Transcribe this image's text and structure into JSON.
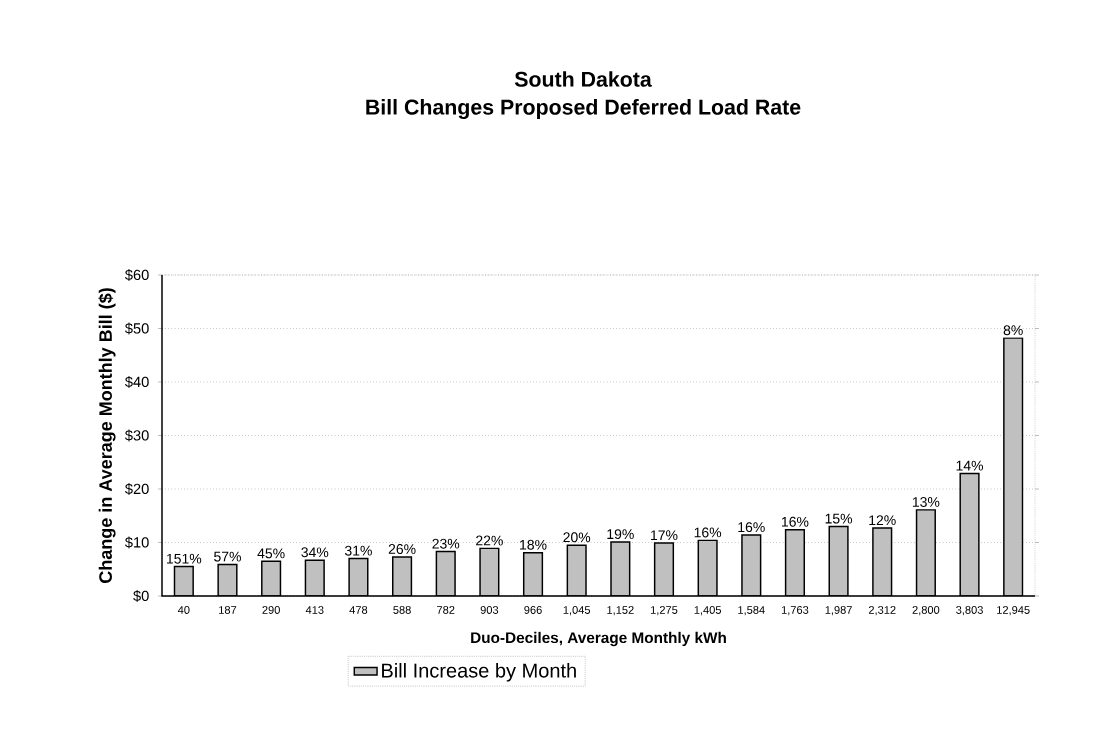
{
  "chart_data": {
    "type": "bar",
    "title": "South Dakota",
    "subtitle": "Bill Changes Proposed Deferred Load Rate",
    "xlabel": "Duo-Deciles, Average Monthly kWh",
    "ylabel": "Change in Average Monthly Bill ($)",
    "categories": [
      "40",
      "187",
      "290",
      "413",
      "478",
      "588",
      "782",
      "903",
      "966",
      "1,045",
      "1,152",
      "1,275",
      "1,405",
      "1,584",
      "1,763",
      "1,987",
      "2,312",
      "2,800",
      "3,803",
      "12,945"
    ],
    "series": [
      {
        "name": "Bill Increase by Month",
        "color": "#c0c0c0",
        "values": [
          5.5,
          5.9,
          6.5,
          6.7,
          7.0,
          7.3,
          8.3,
          8.9,
          8.1,
          9.5,
          10.1,
          9.9,
          10.4,
          11.4,
          12.4,
          13.0,
          12.7,
          16.1,
          22.9,
          48.2
        ]
      }
    ],
    "annotations": [
      {
        "text": "151%",
        "x": "40",
        "y": 5.5
      },
      {
        "text": "57%",
        "x": "187",
        "y": 5.9
      },
      {
        "text": "45%",
        "x": "290",
        "y": 6.5
      },
      {
        "text": "34%",
        "x": "413",
        "y": 6.7
      },
      {
        "text": "31%",
        "x": "478",
        "y": 7.0
      },
      {
        "text": "26%",
        "x": "588",
        "y": 7.3
      },
      {
        "text": "23%",
        "x": "782",
        "y": 8.3
      },
      {
        "text": "22%",
        "x": "903",
        "y": 8.9
      },
      {
        "text": "18%",
        "x": "966",
        "y": 8.1
      },
      {
        "text": "20%",
        "x": "1,045",
        "y": 9.5
      },
      {
        "text": "19%",
        "x": "1,152",
        "y": 10.1
      },
      {
        "text": "17%",
        "x": "1,275",
        "y": 9.9
      },
      {
        "text": "16%",
        "x": "1,405",
        "y": 10.4
      },
      {
        "text": "16%",
        "x": "1,584",
        "y": 11.4
      },
      {
        "text": "16%",
        "x": "1,763",
        "y": 12.4
      },
      {
        "text": "15%",
        "x": "1,987",
        "y": 13.0
      },
      {
        "text": "12%",
        "x": "2,312",
        "y": 12.7
      },
      {
        "text": "13%",
        "x": "2,800",
        "y": 16.1
      },
      {
        "text": "14%",
        "x": "3,803",
        "y": 22.9
      },
      {
        "text": "8%",
        "x": "12,945",
        "y": 48.2
      }
    ],
    "ylim": [
      0,
      60
    ],
    "yticks": [
      {
        "value": 0,
        "label": "$0"
      },
      {
        "value": 10,
        "label": "$10"
      },
      {
        "value": 20,
        "label": "$20"
      },
      {
        "value": 30,
        "label": "$30"
      },
      {
        "value": 40,
        "label": "$40"
      },
      {
        "value": 50,
        "label": "$50"
      },
      {
        "value": 60,
        "label": "$60"
      }
    ],
    "grid": "y",
    "legend": "bottom left"
  }
}
